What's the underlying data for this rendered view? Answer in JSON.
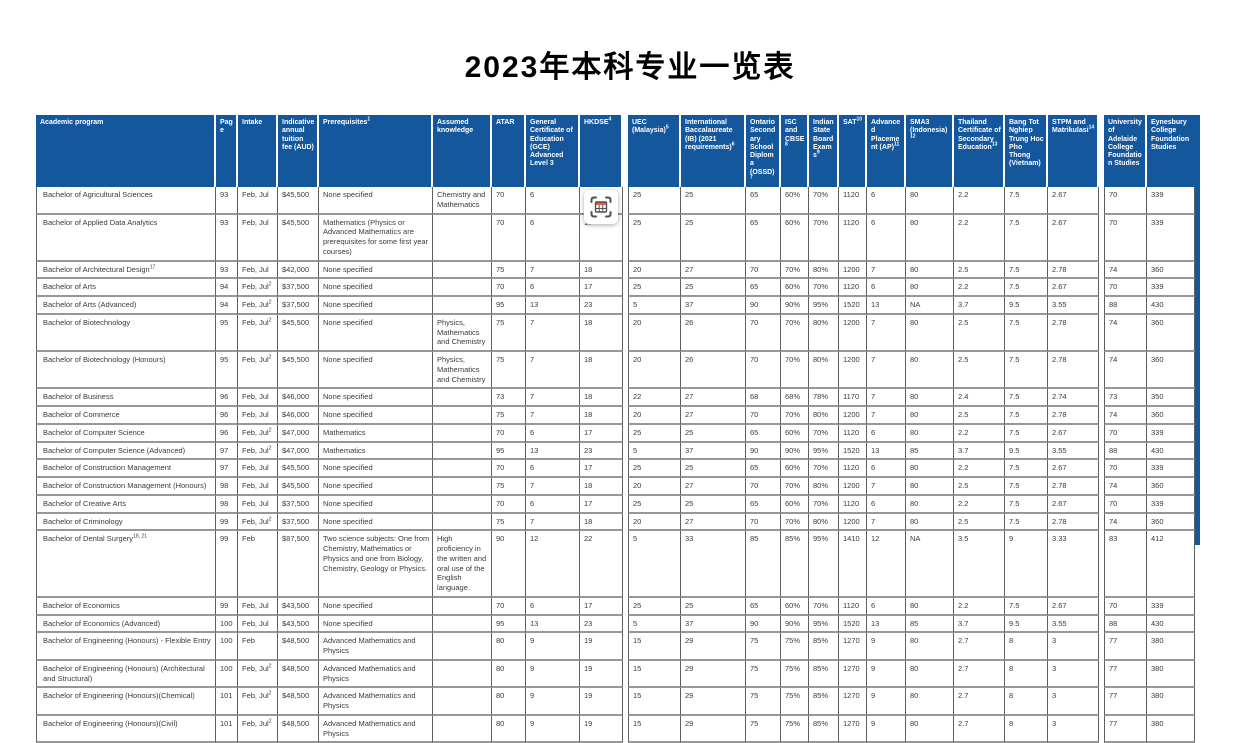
{
  "title": "2023年本科专业一览表",
  "colors": {
    "header_bg": "#14579C",
    "accent_strip": "#14579C",
    "border_dark": "#5F5F5F",
    "border_light": "#979797",
    "body_text": "#3A3A3A",
    "capture_icon_red": "#E2614E"
  },
  "icons": {
    "capture": "table-capture-icon"
  },
  "table": {
    "columns": [
      {
        "key": "program",
        "label": "Academic program",
        "sup": ""
      },
      {
        "key": "page",
        "label": "Page",
        "sup": ""
      },
      {
        "key": "intake",
        "label": "Intake",
        "sup": ""
      },
      {
        "key": "fee",
        "label": "Indicative annual tuition fee (AUD)",
        "sup": ""
      },
      {
        "key": "prerequisites",
        "label": "Prerequisites",
        "sup": "1"
      },
      {
        "key": "assumed",
        "label": "Assumed knowledge",
        "sup": ""
      },
      {
        "key": "atar",
        "label": "ATAR",
        "sup": ""
      },
      {
        "key": "gce",
        "label": "General Certificate of Education (GCE) Advanced Level 3",
        "sup": ""
      },
      {
        "key": "hkdse",
        "label": "HKDSE",
        "sup": "4"
      },
      {
        "key": "uec",
        "label": "UEC (Malaysia)",
        "sup": "5"
      },
      {
        "key": "ib",
        "label": "International Baccalaureate (IB) (2021 requirements)",
        "sup": "6"
      },
      {
        "key": "ossd",
        "label": "Ontario Secondary School Diploma (OSSD)",
        "sup": "7"
      },
      {
        "key": "isc_cbse",
        "label": "ISC and CBSE",
        "sup": "8"
      },
      {
        "key": "indian_state",
        "label": "Indian State Board Exams",
        "sup": "9"
      },
      {
        "key": "sat",
        "label": "SAT",
        "sup": "10"
      },
      {
        "key": "ap",
        "label": "Advanced Placement (AP)",
        "sup": "11"
      },
      {
        "key": "sma3",
        "label": "SMA3 (Indonesia)",
        "sup": "12"
      },
      {
        "key": "thailand",
        "label": "Thailand Certificate of Secondary Education",
        "sup": "13"
      },
      {
        "key": "vietnam",
        "label": "Bang Tot Nghiep Trung Hoc Pho Thong (Vietnam)",
        "sup": ""
      },
      {
        "key": "stpm",
        "label": "STPM and Matrikulasi",
        "sup": "14"
      },
      {
        "key": "uoa_foundation",
        "label": "University of Adelaide College Foundation Studies",
        "sup": ""
      },
      {
        "key": "eynesbury",
        "label": "Eynesbury College Foundation Studies",
        "sup": ""
      }
    ],
    "score_keys": [
      "atar",
      "gce",
      "hkdse",
      "uec",
      "ib",
      "ossd",
      "isc_cbse",
      "indian_state",
      "sat",
      "ap",
      "sma3",
      "thailand",
      "vietnam",
      "stpm",
      "uoa_foundation",
      "eynesbury"
    ],
    "rows": [
      {
        "program": "Bachelor of Agricultural Sciences",
        "program_sup": "",
        "page": "93",
        "intake": "Feb, Jul",
        "intake_sup": "",
        "fee": "$45,500",
        "prereq": "None specified",
        "assumed": "Chemistry and Mathematics",
        "scores": [
          "70",
          "6",
          "17",
          "25",
          "25",
          "65",
          "60%",
          "70%",
          "1120",
          "6",
          "80",
          "2.2",
          "7.5",
          "2.67",
          "70",
          "339"
        ]
      },
      {
        "program": "Bachelor of Applied Data Analytics",
        "program_sup": "",
        "page": "93",
        "intake": "Feb, Jul",
        "intake_sup": "",
        "fee": "$45,500",
        "prereq": "Mathematics (Physics or Advanced Mathematics are prerequisites for some first year courses)",
        "assumed": "",
        "scores": [
          "70",
          "6",
          "17",
          "25",
          "25",
          "65",
          "60%",
          "70%",
          "1120",
          "6",
          "80",
          "2.2",
          "7.5",
          "2.67",
          "70",
          "339"
        ]
      },
      {
        "program": "Bachelor of Architectural Design",
        "program_sup": "17",
        "page": "93",
        "intake": "Feb, Jul",
        "intake_sup": "",
        "fee": "$42,000",
        "prereq": "None specified",
        "assumed": "",
        "scores": [
          "75",
          "7",
          "18",
          "20",
          "27",
          "70",
          "70%",
          "80%",
          "1200",
          "7",
          "80",
          "2.5",
          "7.5",
          "2.78",
          "74",
          "360"
        ]
      },
      {
        "program": "Bachelor of Arts",
        "program_sup": "",
        "page": "94",
        "intake": "Feb, Jul",
        "intake_sup": "2",
        "fee": "$37,500",
        "prereq": "None specified",
        "assumed": "",
        "scores": [
          "70",
          "6",
          "17",
          "25",
          "25",
          "65",
          "60%",
          "70%",
          "1120",
          "6",
          "80",
          "2.2",
          "7.5",
          "2.67",
          "70",
          "339"
        ]
      },
      {
        "program": "Bachelor of Arts (Advanced)",
        "program_sup": "",
        "page": "94",
        "intake": "Feb, Jul",
        "intake_sup": "2",
        "fee": "$37,500",
        "prereq": "None specified",
        "assumed": "",
        "scores": [
          "95",
          "13",
          "23",
          "5",
          "37",
          "90",
          "90%",
          "95%",
          "1520",
          "13",
          "NA",
          "3.7",
          "9.5",
          "3.55",
          "88",
          "430"
        ]
      },
      {
        "program": "Bachelor of Biotechnology",
        "program_sup": "",
        "page": "95",
        "intake": "Feb, Jul",
        "intake_sup": "2",
        "fee": "$45,500",
        "prereq": "None specified",
        "assumed": "Physics, Mathematics and Chemistry",
        "scores": [
          "75",
          "7",
          "18",
          "20",
          "26",
          "70",
          "70%",
          "80%",
          "1200",
          "7",
          "80",
          "2.5",
          "7.5",
          "2.78",
          "74",
          "360"
        ]
      },
      {
        "program": "Bachelor of Biotechnology (Honours)",
        "program_sup": "",
        "page": "95",
        "intake": "Feb, Jul",
        "intake_sup": "2",
        "fee": "$45,500",
        "prereq": "None specified",
        "assumed": "Physics, Mathematics and Chemistry",
        "scores": [
          "75",
          "7",
          "18",
          "20",
          "26",
          "70",
          "70%",
          "80%",
          "1200",
          "7",
          "80",
          "2.5",
          "7.5",
          "2.78",
          "74",
          "360"
        ]
      },
      {
        "program": "Bachelor of Business",
        "program_sup": "",
        "page": "96",
        "intake": "Feb, Jul",
        "intake_sup": "",
        "fee": "$46,000",
        "prereq": "None specified",
        "assumed": "",
        "scores": [
          "73",
          "7",
          "18",
          "22",
          "27",
          "68",
          "68%",
          "78%",
          "1170",
          "7",
          "80",
          "2.4",
          "7.5",
          "2.74",
          "73",
          "350"
        ]
      },
      {
        "program": "Bachelor of Commerce",
        "program_sup": "",
        "page": "96",
        "intake": "Feb, Jul",
        "intake_sup": "",
        "fee": "$46,000",
        "prereq": "None specified",
        "assumed": "",
        "scores": [
          "75",
          "7",
          "18",
          "20",
          "27",
          "70",
          "70%",
          "80%",
          "1200",
          "7",
          "80",
          "2.5",
          "7.5",
          "2.78",
          "74",
          "360"
        ]
      },
      {
        "program": "Bachelor of Computer Science",
        "program_sup": "",
        "page": "96",
        "intake": "Feb, Jul",
        "intake_sup": "2",
        "fee": "$47,000",
        "prereq": "Mathematics",
        "assumed": "",
        "scores": [
          "70",
          "6",
          "17",
          "25",
          "25",
          "65",
          "60%",
          "70%",
          "1120",
          "6",
          "80",
          "2.2",
          "7.5",
          "2.67",
          "70",
          "339"
        ]
      },
      {
        "program": "Bachelor of Computer Science (Advanced)",
        "program_sup": "",
        "page": "97",
        "intake": "Feb, Jul",
        "intake_sup": "2",
        "fee": "$47,000",
        "prereq": "Mathematics",
        "assumed": "",
        "scores": [
          "95",
          "13",
          "23",
          "5",
          "37",
          "90",
          "90%",
          "95%",
          "1520",
          "13",
          "85",
          "3.7",
          "9.5",
          "3.55",
          "88",
          "430"
        ]
      },
      {
        "program": "Bachelor of Construction Management",
        "program_sup": "",
        "page": "97",
        "intake": "Feb, Jul",
        "intake_sup": "",
        "fee": "$45,500",
        "prereq": "None specified",
        "assumed": "",
        "scores": [
          "70",
          "6",
          "17",
          "25",
          "25",
          "65",
          "60%",
          "70%",
          "1120",
          "6",
          "80",
          "2.2",
          "7.5",
          "2.67",
          "70",
          "339"
        ]
      },
      {
        "program": "Bachelor of Construction Management (Honours)",
        "program_sup": "",
        "page": "98",
        "intake": "Feb, Jul",
        "intake_sup": "",
        "fee": "$45,500",
        "prereq": "None specified",
        "assumed": "",
        "scores": [
          "75",
          "7",
          "18",
          "20",
          "27",
          "70",
          "70%",
          "80%",
          "1200",
          "7",
          "80",
          "2.5",
          "7.5",
          "2.78",
          "74",
          "360"
        ]
      },
      {
        "program": "Bachelor of Creative Arts",
        "program_sup": "",
        "page": "98",
        "intake": "Feb, Jul",
        "intake_sup": "",
        "fee": "$37,500",
        "prereq": "None specified",
        "assumed": "",
        "scores": [
          "70",
          "6",
          "17",
          "25",
          "25",
          "65",
          "60%",
          "70%",
          "1120",
          "6",
          "80",
          "2.2",
          "7.5",
          "2.67",
          "70",
          "339"
        ]
      },
      {
        "program": "Bachelor of Criminology",
        "program_sup": "",
        "page": "99",
        "intake": "Feb, Jul",
        "intake_sup": "2",
        "fee": "$37,500",
        "prereq": "None specified",
        "assumed": "",
        "scores": [
          "75",
          "7",
          "18",
          "20",
          "27",
          "70",
          "70%",
          "80%",
          "1200",
          "7",
          "80",
          "2.5",
          "7.5",
          "2.78",
          "74",
          "360"
        ]
      },
      {
        "program": "Bachelor of Dental Surgery",
        "program_sup": "18, 21",
        "page": "99",
        "intake": "Feb",
        "intake_sup": "",
        "fee": "$87,500",
        "prereq": "Two science subjects: One from Chemistry, Mathematics or Physics and one from Biology, Chemistry, Geology or Physics.",
        "assumed": "High proficiency in the written and oral use of the English language.",
        "scores": [
          "90",
          "12",
          "22",
          "5",
          "33",
          "85",
          "85%",
          "95%",
          "1410",
          "12",
          "NA",
          "3.5",
          "9",
          "3.33",
          "83",
          "412"
        ]
      },
      {
        "program": "Bachelor of Economics",
        "program_sup": "",
        "page": "99",
        "intake": "Feb, Jul",
        "intake_sup": "",
        "fee": "$43,500",
        "prereq": "None specified",
        "assumed": "",
        "scores": [
          "70",
          "6",
          "17",
          "25",
          "25",
          "65",
          "60%",
          "70%",
          "1120",
          "6",
          "80",
          "2.2",
          "7.5",
          "2.67",
          "70",
          "339"
        ]
      },
      {
        "program": "Bachelor of Economics (Advanced)",
        "program_sup": "",
        "page": "100",
        "intake": "Feb, Jul",
        "intake_sup": "",
        "fee": "$43,500",
        "prereq": "None specified",
        "assumed": "",
        "scores": [
          "95",
          "13",
          "23",
          "5",
          "37",
          "90",
          "90%",
          "95%",
          "1520",
          "13",
          "85",
          "3.7",
          "9.5",
          "3.55",
          "88",
          "430"
        ]
      },
      {
        "program": "Bachelor of Engineering (Honours) - Flexible Entry",
        "program_sup": "",
        "page": "100",
        "intake": "Feb",
        "intake_sup": "",
        "fee": "$48,500",
        "prereq": "Advanced Mathematics and Physics",
        "assumed": "",
        "scores": [
          "80",
          "9",
          "19",
          "15",
          "29",
          "75",
          "75%",
          "85%",
          "1270",
          "9",
          "80",
          "2.7",
          "8",
          "3",
          "77",
          "380"
        ]
      },
      {
        "program": "Bachelor of Engineering (Honours) (Architectural and Structural)",
        "program_sup": "",
        "page": "100",
        "intake": "Feb, Jul",
        "intake_sup": "2",
        "fee": "$48,500",
        "prereq": "Advanced Mathematics and Physics",
        "assumed": "",
        "scores": [
          "80",
          "9",
          "19",
          "15",
          "29",
          "75",
          "75%",
          "85%",
          "1270",
          "9",
          "80",
          "2.7",
          "8",
          "3",
          "77",
          "380"
        ]
      },
      {
        "program": "Bachelor of Engineering (Honours)(Chemical)",
        "program_sup": "",
        "page": "101",
        "intake": "Feb, Jul",
        "intake_sup": "2",
        "fee": "$48,500",
        "prereq": "Advanced Mathematics and Physics",
        "assumed": "",
        "scores": [
          "80",
          "9",
          "19",
          "15",
          "29",
          "75",
          "75%",
          "85%",
          "1270",
          "9",
          "80",
          "2.7",
          "8",
          "3",
          "77",
          "380"
        ]
      },
      {
        "program": "Bachelor of Engineering (Honours)(Civil)",
        "program_sup": "",
        "page": "101",
        "intake": "Feb, Jul",
        "intake_sup": "2",
        "fee": "$48,500",
        "prereq": "Advanced Mathematics and Physics",
        "assumed": "",
        "scores": [
          "80",
          "9",
          "19",
          "15",
          "29",
          "75",
          "75%",
          "85%",
          "1270",
          "9",
          "80",
          "2.7",
          "8",
          "3",
          "77",
          "380"
        ]
      }
    ]
  }
}
